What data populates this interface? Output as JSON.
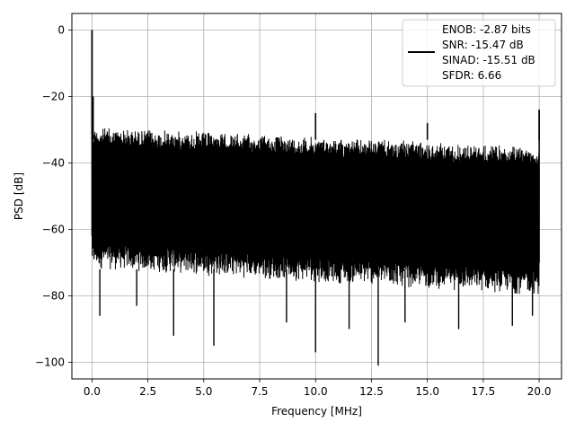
{
  "chart_data": {
    "type": "line",
    "xlabel": "Frequency [MHz]",
    "ylabel": "PSD [dB]",
    "xlim": [
      -0.9,
      21.0
    ],
    "ylim": [
      -105,
      5
    ],
    "grid": true,
    "xticks": [
      0.0,
      2.5,
      5.0,
      7.5,
      10.0,
      12.5,
      15.0,
      17.5,
      20.0
    ],
    "xtick_labels": [
      "0.0",
      "2.5",
      "5.0",
      "7.5",
      "10.0",
      "12.5",
      "15.0",
      "17.5",
      "20.0"
    ],
    "yticks": [
      0,
      -20,
      -40,
      -60,
      -80,
      -100
    ],
    "ytick_labels": [
      "0",
      "−20",
      "−40",
      "−60",
      "−80",
      "−100"
    ],
    "legend_position": "top-right",
    "legend_lines": [
      "ENOB: -2.87 bits",
      "SNR: -15.47 dB",
      "SINAD: -15.51 dB",
      "SFDR: 6.66"
    ],
    "series": [
      {
        "color": "#000000",
        "freq_range": [
          0.0,
          20.0
        ],
        "noise_envelope": {
          "upper_start": -29,
          "upper_end": -35,
          "lower_start": -72,
          "lower_end": -80
        },
        "spurs": [
          {
            "x": 0.0,
            "y": 0
          },
          {
            "x": 0.05,
            "y": -20
          },
          {
            "x": 10.0,
            "y": -25
          },
          {
            "x": 15.0,
            "y": -28
          },
          {
            "x": 20.0,
            "y": -24
          }
        ],
        "dips": [
          {
            "x": 0.35,
            "y": -86
          },
          {
            "x": 2.0,
            "y": -83
          },
          {
            "x": 3.65,
            "y": -92
          },
          {
            "x": 5.45,
            "y": -95
          },
          {
            "x": 8.7,
            "y": -88
          },
          {
            "x": 10.0,
            "y": -97
          },
          {
            "x": 11.5,
            "y": -90
          },
          {
            "x": 12.8,
            "y": -101
          },
          {
            "x": 14.0,
            "y": -88
          },
          {
            "x": 16.4,
            "y": -90
          },
          {
            "x": 18.8,
            "y": -89
          },
          {
            "x": 19.7,
            "y": -86
          }
        ]
      }
    ]
  }
}
